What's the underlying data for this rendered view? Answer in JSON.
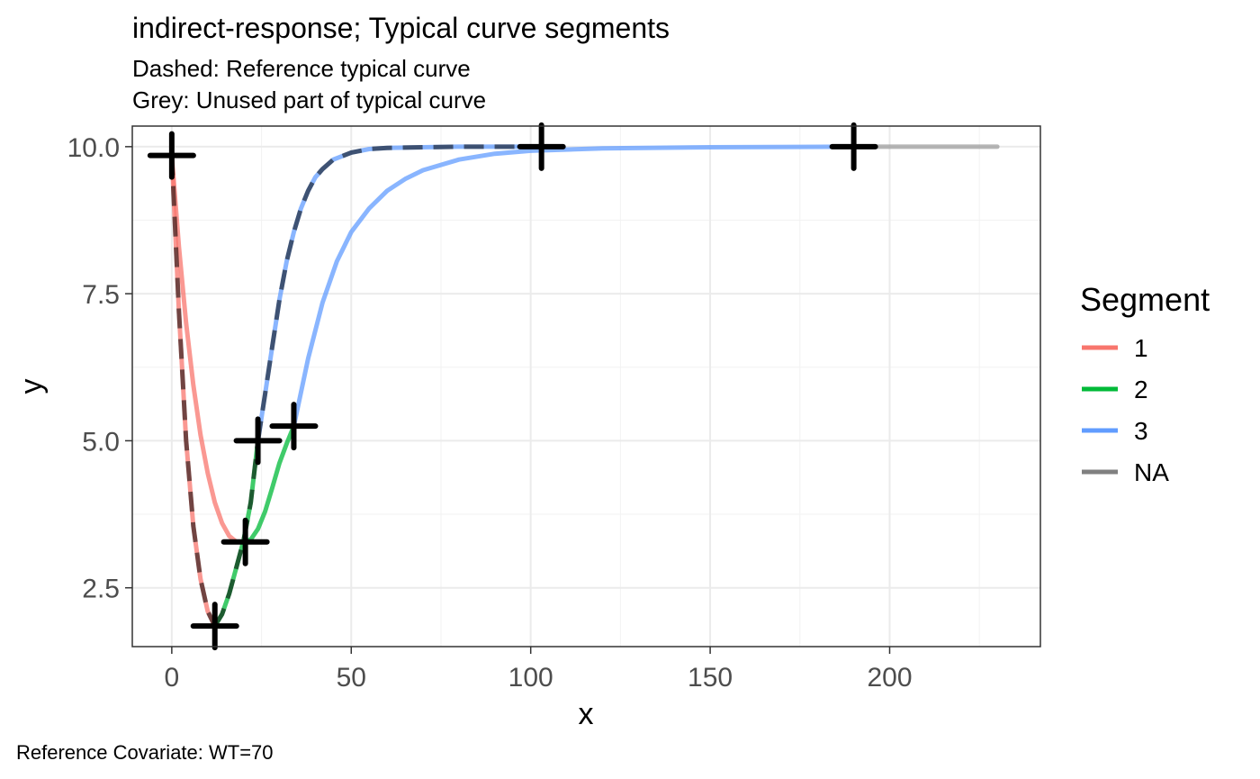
{
  "chart_data": {
    "type": "line",
    "title": "indirect-response; Typical curve segments",
    "subtitle_lines": [
      "Dashed: Reference typical curve",
      "Grey: Unused part of typical curve"
    ],
    "xlabel": "x",
    "ylabel": "y",
    "caption": "Reference Covariate: WT=70",
    "xlim": [
      -11,
      242
    ],
    "ylim": [
      1.5,
      10.35
    ],
    "x_ticks": [
      0,
      50,
      100,
      150,
      200
    ],
    "x_tick_labels": [
      "0",
      "50",
      "100",
      "150",
      "200"
    ],
    "y_ticks": [
      2.5,
      5.0,
      7.5,
      10.0
    ],
    "y_tick_labels": [
      "2.5",
      "5.0",
      "7.5",
      "10.0"
    ],
    "grid": true,
    "legend": {
      "title": "Segment",
      "position": "right",
      "entries": [
        {
          "label": "1",
          "color": "#F8766D"
        },
        {
          "label": "2",
          "color": "#00BA38"
        },
        {
          "label": "3",
          "color": "#619CFF"
        },
        {
          "label": "NA",
          "color": "#808080"
        }
      ]
    },
    "series": [
      {
        "segment": "1",
        "color": "#F8766D",
        "x": [
          0,
          2,
          4,
          6,
          8,
          10,
          12,
          14,
          16,
          18,
          20
        ],
        "y": [
          9.85,
          8.3,
          7.0,
          5.95,
          5.1,
          4.45,
          3.95,
          3.6,
          3.38,
          3.28,
          3.28
        ]
      },
      {
        "segment": "2",
        "color": "#00BA38",
        "x": [
          20,
          22,
          24,
          26,
          28,
          30,
          32,
          34
        ],
        "y": [
          3.28,
          3.32,
          3.5,
          3.8,
          4.2,
          4.62,
          4.95,
          5.25
        ]
      },
      {
        "segment": "3",
        "color": "#619CFF",
        "x": [
          34,
          38,
          42,
          46,
          50,
          55,
          60,
          65,
          70,
          80,
          90,
          100,
          120,
          150,
          190
        ],
        "y": [
          5.25,
          6.4,
          7.35,
          8.05,
          8.55,
          8.95,
          9.25,
          9.45,
          9.6,
          9.78,
          9.88,
          9.93,
          9.97,
          9.99,
          10.0
        ]
      },
      {
        "segment": "NA",
        "color": "#9E9E9E",
        "x": [
          190,
          230
        ],
        "y": [
          10.0,
          10.0
        ]
      },
      {
        "segment": "1",
        "color": "#F8766D",
        "reference": true,
        "x": [
          0,
          2,
          4,
          6,
          8,
          10,
          12
        ],
        "y": [
          9.85,
          7.2,
          5.0,
          3.55,
          2.65,
          2.1,
          1.85
        ]
      },
      {
        "segment": "2",
        "color": "#00BA38",
        "reference": true,
        "x": [
          12,
          14,
          16,
          18,
          20,
          22,
          24
        ],
        "y": [
          1.85,
          2.05,
          2.4,
          2.85,
          3.3,
          3.95,
          5.0
        ]
      },
      {
        "segment": "3",
        "color": "#619CFF",
        "reference": true,
        "x": [
          24,
          26,
          28,
          30,
          32,
          34,
          36,
          38,
          40,
          42,
          45,
          50,
          55,
          60,
          70,
          80,
          103
        ],
        "y": [
          5.0,
          5.8,
          6.6,
          7.4,
          8.05,
          8.55,
          8.95,
          9.25,
          9.48,
          9.62,
          9.78,
          9.9,
          9.96,
          9.98,
          9.99,
          10.0,
          10.0
        ]
      }
    ],
    "markers": {
      "shape": "plus",
      "points": [
        {
          "x": 0,
          "y": 9.85
        },
        {
          "x": 12,
          "y": 1.85
        },
        {
          "x": 20.5,
          "y": 3.28
        },
        {
          "x": 24,
          "y": 5.0
        },
        {
          "x": 34,
          "y": 5.25
        },
        {
          "x": 103,
          "y": 10.0
        },
        {
          "x": 190,
          "y": 10.0
        }
      ]
    }
  }
}
